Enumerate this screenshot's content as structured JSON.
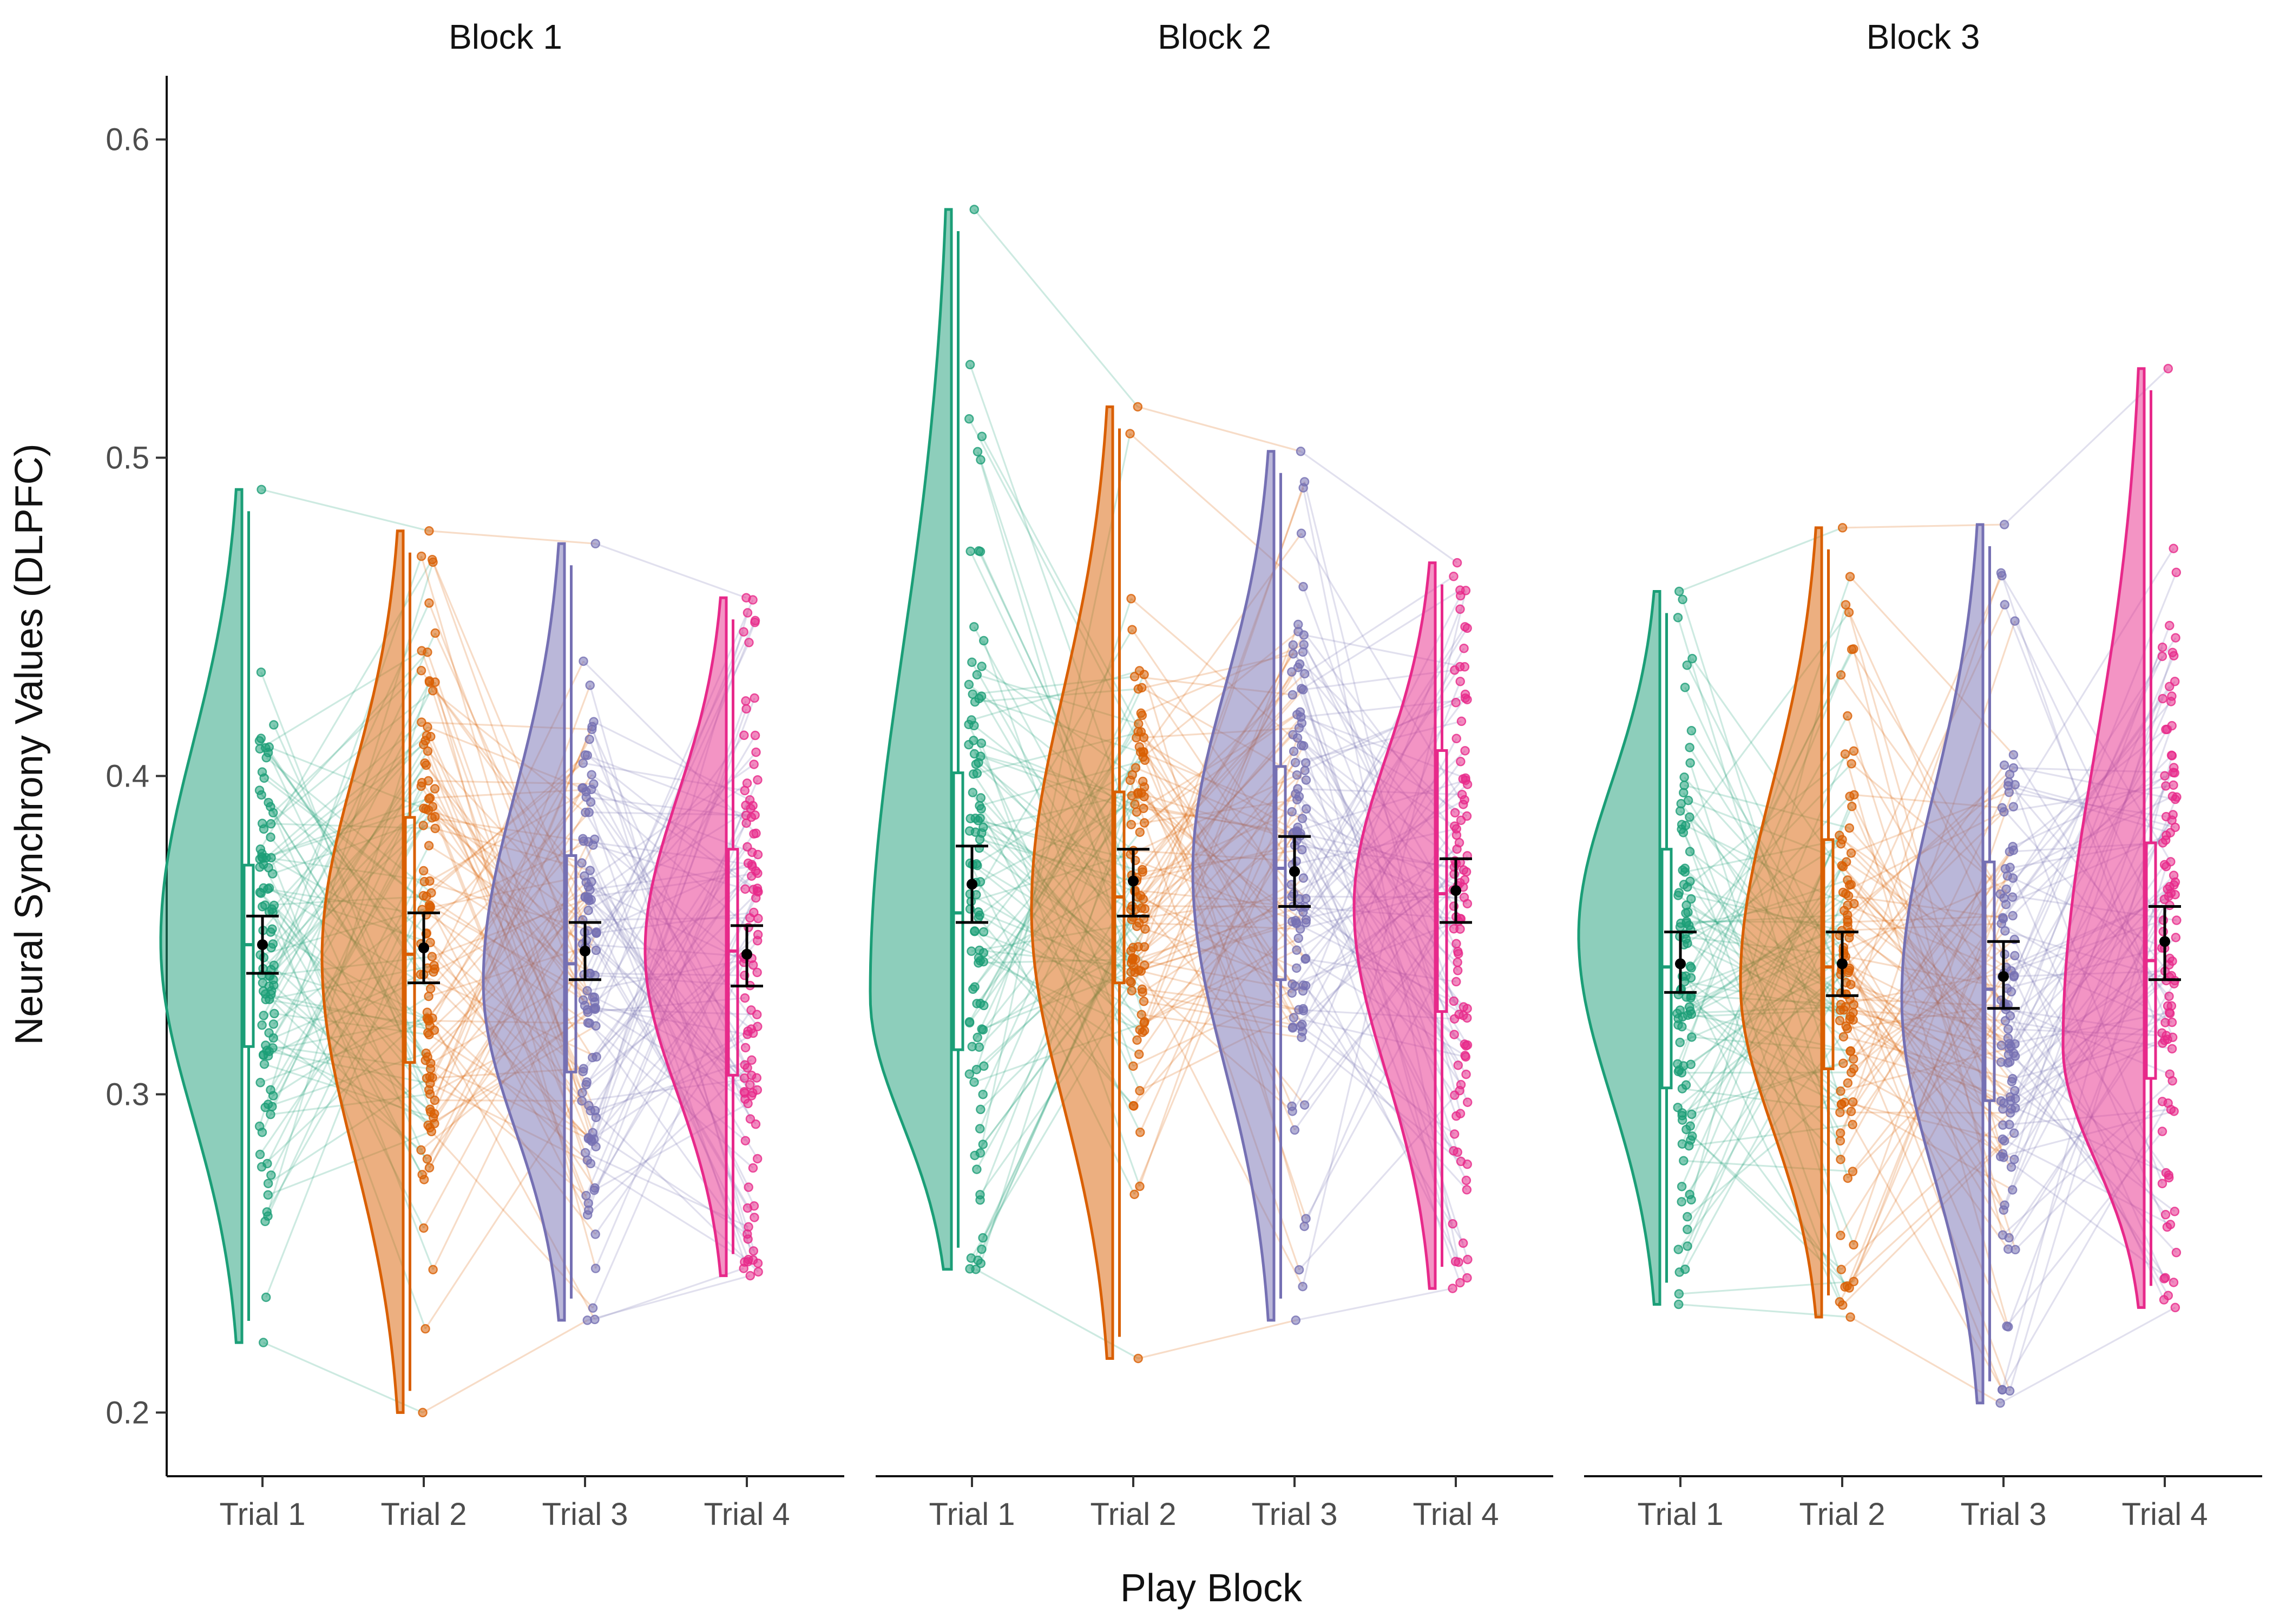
{
  "chart_data": {
    "type": "raincloud",
    "xlabel": "Play Block",
    "ylabel": "Neural Synchrony Values (DLPFC)",
    "ylim": [
      0.18,
      0.62
    ],
    "yticks": [
      0.2,
      0.3,
      0.4,
      0.5,
      0.6
    ],
    "yticklabels": [
      "0.2",
      "0.3",
      "0.4",
      "0.5",
      "0.6"
    ],
    "categories": [
      "Trial 1",
      "Trial 2",
      "Trial 3",
      "Trial 4"
    ],
    "colors": [
      "#1b9e77",
      "#d95f02",
      "#7570b3",
      "#e7298a"
    ],
    "legend": "none",
    "grid": false,
    "facets": [
      {
        "title": "Block 1",
        "trials": [
          {
            "name": "Trial 1",
            "mean": 0.347,
            "se_low": 0.338,
            "se_high": 0.356,
            "min": 0.222,
            "max": 0.49,
            "q1": 0.315,
            "median": 0.347,
            "q3": 0.372,
            "density_peak": 0.348
          },
          {
            "name": "Trial 2",
            "mean": 0.346,
            "se_low": 0.335,
            "se_high": 0.357,
            "min": 0.2,
            "max": 0.477,
            "q1": 0.31,
            "median": 0.344,
            "q3": 0.387,
            "density_peak": 0.343
          },
          {
            "name": "Trial 3",
            "mean": 0.345,
            "se_low": 0.336,
            "se_high": 0.354,
            "min": 0.229,
            "max": 0.473,
            "q1": 0.307,
            "median": 0.341,
            "q3": 0.375,
            "density_peak": 0.335
          },
          {
            "name": "Trial 4",
            "mean": 0.344,
            "se_low": 0.334,
            "se_high": 0.353,
            "min": 0.243,
            "max": 0.456,
            "q1": 0.306,
            "median": 0.345,
            "q3": 0.377,
            "density_peak": 0.345
          }
        ]
      },
      {
        "title": "Block 2",
        "trials": [
          {
            "name": "Trial 1",
            "mean": 0.366,
            "se_low": 0.354,
            "se_high": 0.378,
            "min": 0.245,
            "max": 0.578,
            "q1": 0.314,
            "median": 0.357,
            "q3": 0.401,
            "density_peak": 0.331
          },
          {
            "name": "Trial 2",
            "mean": 0.367,
            "se_low": 0.356,
            "se_high": 0.377,
            "min": 0.217,
            "max": 0.516,
            "q1": 0.335,
            "median": 0.362,
            "q3": 0.395,
            "density_peak": 0.358
          },
          {
            "name": "Trial 3",
            "mean": 0.37,
            "se_low": 0.359,
            "se_high": 0.381,
            "min": 0.229,
            "max": 0.502,
            "q1": 0.336,
            "median": 0.371,
            "q3": 0.403,
            "density_peak": 0.37
          },
          {
            "name": "Trial 4",
            "mean": 0.364,
            "se_low": 0.354,
            "se_high": 0.374,
            "min": 0.239,
            "max": 0.467,
            "q1": 0.326,
            "median": 0.363,
            "q3": 0.408,
            "density_peak": 0.359
          }
        ]
      },
      {
        "title": "Block 3",
        "trials": [
          {
            "name": "Trial 1",
            "mean": 0.341,
            "se_low": 0.332,
            "se_high": 0.351,
            "min": 0.234,
            "max": 0.458,
            "q1": 0.302,
            "median": 0.34,
            "q3": 0.377,
            "density_peak": 0.35
          },
          {
            "name": "Trial 2",
            "mean": 0.341,
            "se_low": 0.331,
            "se_high": 0.351,
            "min": 0.23,
            "max": 0.478,
            "q1": 0.308,
            "median": 0.34,
            "q3": 0.38,
            "density_peak": 0.335
          },
          {
            "name": "Trial 3",
            "mean": 0.337,
            "se_low": 0.327,
            "se_high": 0.348,
            "min": 0.203,
            "max": 0.479,
            "q1": 0.298,
            "median": 0.333,
            "q3": 0.373,
            "density_peak": 0.33
          },
          {
            "name": "Trial 4",
            "mean": 0.348,
            "se_low": 0.336,
            "se_high": 0.359,
            "min": 0.233,
            "max": 0.528,
            "q1": 0.305,
            "median": 0.342,
            "q3": 0.379,
            "density_peak": 0.315
          }
        ]
      }
    ]
  }
}
